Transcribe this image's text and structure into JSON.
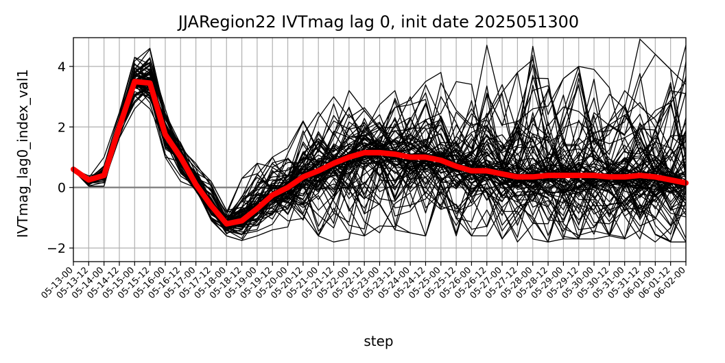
{
  "chart_data": {
    "type": "line",
    "title": "JJARegion22 IVTmag lag 0, init date 2025051300",
    "xlabel": "step",
    "ylabel": "IVTmag_lag0_index_val1",
    "ylim": [
      -2.45,
      4.95
    ],
    "yticks": [
      -2,
      0,
      2,
      4
    ],
    "ytick_labels": [
      "−2",
      "0",
      "2",
      "4"
    ],
    "grid": true,
    "zero_line": true,
    "colors": {
      "ensemble": "#000000",
      "mean": "#ff0000",
      "grid": "#b0b0b0",
      "zero_line": "#808080"
    },
    "categories": [
      "05-13-00",
      "05-13-12",
      "05-14-00",
      "05-14-12",
      "05-15-00",
      "05-15-12",
      "05-16-00",
      "05-16-12",
      "05-17-00",
      "05-17-12",
      "05-18-00",
      "05-18-12",
      "05-19-00",
      "05-19-12",
      "05-20-00",
      "05-20-12",
      "05-21-00",
      "05-21-12",
      "05-22-00",
      "05-22-12",
      "05-23-00",
      "05-23-12",
      "05-24-00",
      "05-24-12",
      "05-25-00",
      "05-25-12",
      "05-26-00",
      "05-26-12",
      "05-27-00",
      "05-27-12",
      "05-28-00",
      "05-28-12",
      "05-29-00",
      "05-29-12",
      "05-30-00",
      "05-30-12",
      "05-31-00",
      "05-31-12",
      "06-01-00",
      "06-01-12",
      "06-02-00"
    ],
    "mean_series": {
      "values": [
        0.6,
        0.25,
        0.4,
        2.0,
        3.5,
        3.45,
        1.75,
        1.0,
        0.1,
        -0.6,
        -1.2,
        -1.1,
        -0.7,
        -0.25,
        0.0,
        0.35,
        0.55,
        0.8,
        1.0,
        1.15,
        1.15,
        1.1,
        1.0,
        1.0,
        0.9,
        0.7,
        0.55,
        0.55,
        0.45,
        0.35,
        0.35,
        0.4,
        0.4,
        0.4,
        0.4,
        0.35,
        0.35,
        0.4,
        0.35,
        0.25,
        0.15
      ]
    },
    "ensemble": {
      "members": 100,
      "envelope_low": [
        0.5,
        0.0,
        0.0,
        1.6,
        2.6,
        2.5,
        1.0,
        0.2,
        -0.2,
        -1.1,
        -1.6,
        -1.75,
        -1.6,
        -1.4,
        -1.4,
        -1.4,
        -1.6,
        -1.8,
        -1.7,
        -1.6,
        -1.5,
        -1.4,
        -1.5,
        -1.6,
        -1.5,
        -1.6,
        -1.6,
        -1.6,
        -1.7,
        -1.8,
        -1.7,
        -1.8,
        -1.7,
        -1.7,
        -1.7,
        -1.6,
        -1.7,
        -1.7,
        -1.8,
        -1.8,
        -1.8
      ],
      "envelope_high": [
        0.65,
        0.4,
        1.0,
        2.5,
        4.3,
        4.6,
        2.6,
        1.5,
        0.8,
        0.2,
        -0.75,
        0.3,
        0.8,
        1.0,
        1.3,
        2.2,
        2.6,
        3.0,
        3.2,
        3.3,
        3.0,
        3.2,
        3.0,
        3.5,
        3.8,
        3.5,
        3.6,
        4.7,
        3.4,
        3.8,
        4.8,
        3.6,
        3.6,
        4.0,
        3.9,
        3.3,
        3.2,
        4.9,
        4.4,
        3.9,
        4.7
      ]
    }
  }
}
